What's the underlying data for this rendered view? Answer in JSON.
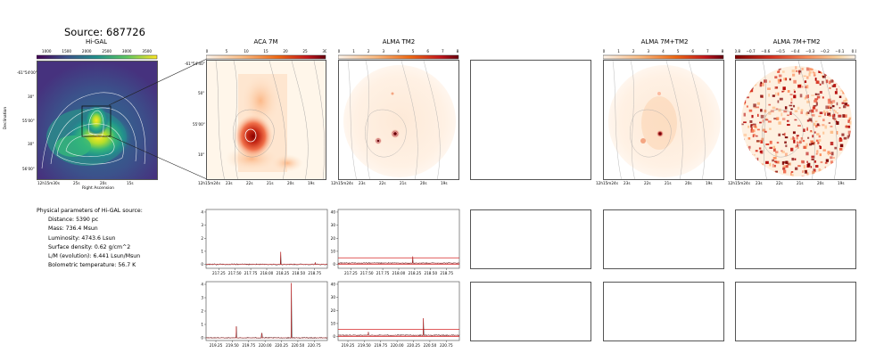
{
  "source_title": "Source: 687726",
  "panel_titles": {
    "higal": "Hi-GAL",
    "aca": "ACA 7M",
    "tm2": "ALMA TM2",
    "combo": "ALMA 7M+TM2",
    "combo_ratio": "ALMA 7M+TM2"
  },
  "colorbars": {
    "higal": {
      "ticks": [
        "1000",
        "1500",
        "2000",
        "2500",
        "3000",
        "3500"
      ],
      "colors": [
        "#440154",
        "#3b528b",
        "#21918c",
        "#5ec962",
        "#fde725"
      ]
    },
    "aca": {
      "ticks": [
        "0",
        "5",
        "10",
        "15",
        "20",
        "25",
        "30"
      ]
    },
    "tm2": {
      "ticks": [
        "0",
        "1",
        "2",
        "3",
        "4",
        "5",
        "6",
        "7",
        "8"
      ]
    },
    "combo": {
      "ticks": [
        "0",
        "1",
        "2",
        "3",
        "4",
        "5",
        "6",
        "7",
        "8"
      ]
    },
    "combo_ratio": {
      "ticks": [
        "−0.8",
        "−0.7",
        "−0.6",
        "−0.5",
        "−0.4",
        "−0.3",
        "−0.2",
        "−0.1",
        "0.0"
      ]
    }
  },
  "higal_axes": {
    "ylabel": "Declination",
    "xlabel": "Right Ascension",
    "yticks": [
      "-61°54'00\"",
      "30\"",
      "55'00\"",
      "30\"",
      "56'00\""
    ],
    "xticks": [
      "12h15m30s",
      "25s",
      "20s",
      "15s"
    ]
  },
  "map_axes": {
    "yticks": [
      "-61°54'40\"",
      "50\"",
      "55'00\"",
      "10\""
    ],
    "xticks": [
      "12h15m24s",
      "23s",
      "22s",
      "21s",
      "20s",
      "19s"
    ]
  },
  "physical": {
    "header": "Physical parameters of Hi-GAL source:",
    "lines": [
      "Distance: 5390 pc",
      "Mass: 736.4 Msun",
      "Luminosity: 4743.6 Lsun",
      "Surface density: 0.62 g/cm^2",
      "L/M (evolution): 6.441 Lsun/Msun",
      "Bolometric temperature: 56.7 K"
    ]
  },
  "chart_data": [
    {
      "type": "line",
      "panel": "ACA 7M spectrum, upper band",
      "xlim": [
        217.05,
        218.95
      ],
      "ylim": [
        -0.3,
        4.2
      ],
      "xticks": [
        217.25,
        217.5,
        217.75,
        218.0,
        218.25,
        218.5,
        218.75
      ],
      "yticks": [
        0,
        1,
        2,
        3,
        4
      ],
      "baseline": 0.0,
      "features": [
        {
          "x": 218.22,
          "y": 0.95
        },
        {
          "x": 218.76,
          "y": 0.15
        }
      ],
      "colors": {
        "data": "#222222",
        "model": "#d62728"
      }
    },
    {
      "type": "line",
      "panel": "ALMA TM2 spectrum, upper band",
      "xlim": [
        217.05,
        218.95
      ],
      "ylim": [
        -3,
        42
      ],
      "xticks": [
        217.25,
        217.5,
        217.75,
        218.0,
        218.25,
        218.5,
        218.75
      ],
      "yticks": [
        0,
        10,
        20,
        30,
        40
      ],
      "baseline": 1.0,
      "band": [
        0.0,
        5.0
      ],
      "features": [
        {
          "x": 218.22,
          "y": 6.0
        }
      ],
      "colors": {
        "data": "#222222",
        "model": "#d62728"
      }
    },
    {
      "type": "line",
      "panel": "ACA 7M spectrum, lower band",
      "xlim": [
        219.1,
        220.95
      ],
      "ylim": [
        -0.2,
        4.2
      ],
      "xticks": [
        219.25,
        219.5,
        219.75,
        220.0,
        220.25,
        220.5,
        220.75
      ],
      "yticks": [
        0,
        1,
        2,
        3,
        4
      ],
      "baseline": 0.0,
      "features": [
        {
          "x": 219.56,
          "y": 0.85
        },
        {
          "x": 219.95,
          "y": 0.35
        },
        {
          "x": 220.4,
          "y": 4.1
        }
      ],
      "colors": {
        "data": "#222222",
        "model": "#d62728"
      }
    },
    {
      "type": "line",
      "panel": "ALMA TM2 spectrum, lower band",
      "xlim": [
        219.1,
        220.95
      ],
      "ylim": [
        -3,
        42
      ],
      "xticks": [
        219.25,
        219.5,
        219.75,
        220.0,
        220.25,
        220.5,
        220.75
      ],
      "yticks": [
        0,
        10,
        20,
        30,
        40
      ],
      "baseline": 1.0,
      "band": [
        0.0,
        5.5
      ],
      "features": [
        {
          "x": 219.56,
          "y": 3.5
        },
        {
          "x": 220.4,
          "y": 14.0
        }
      ],
      "colors": {
        "data": "#222222",
        "model": "#d62728"
      }
    }
  ]
}
